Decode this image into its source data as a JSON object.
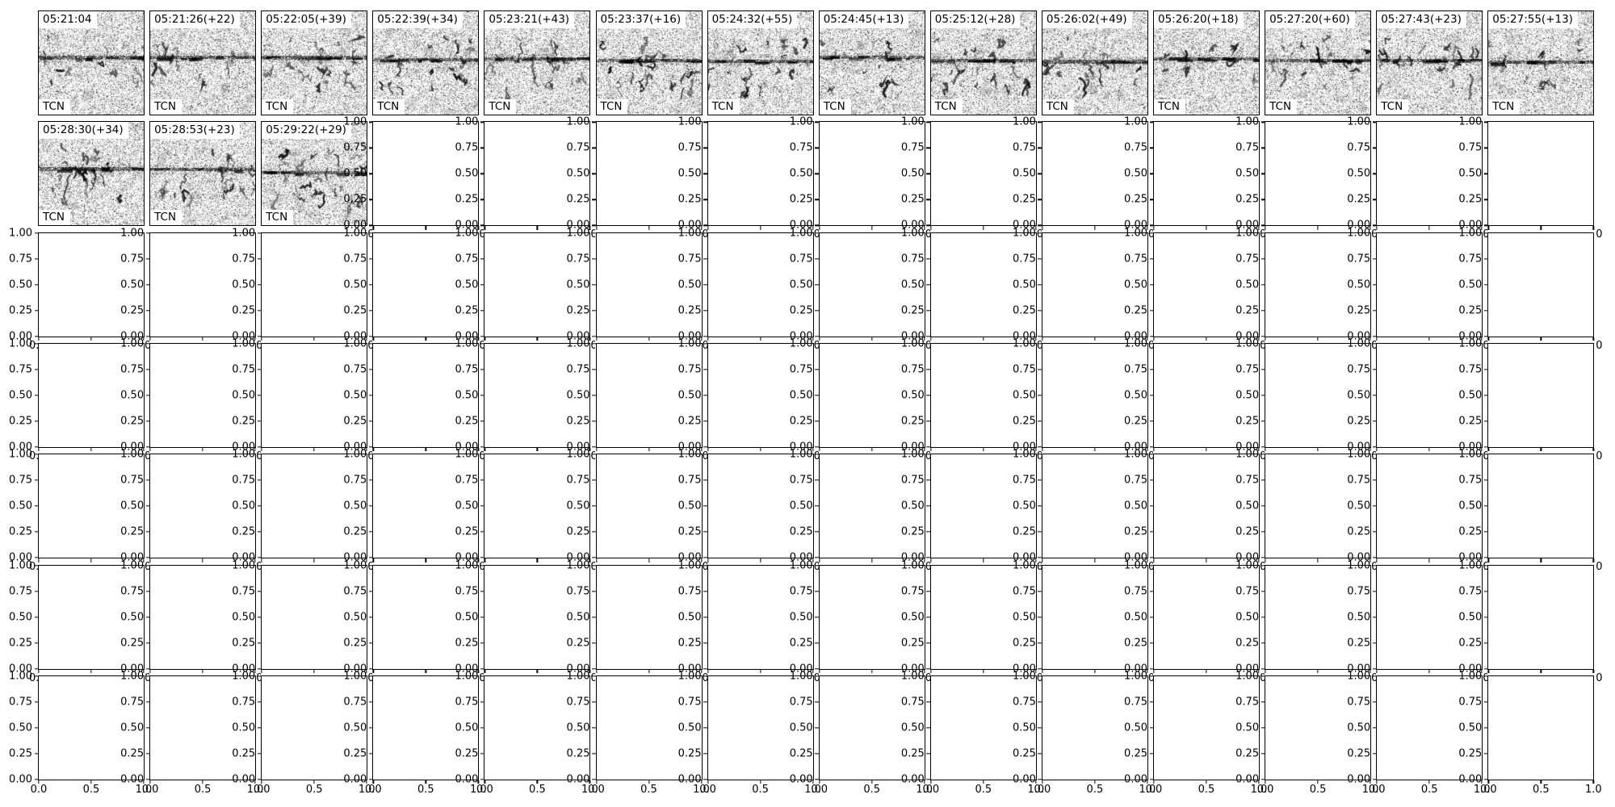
{
  "figure": {
    "background": "#ffffff",
    "ink": "#000000"
  },
  "axes": {
    "y_tick_labels": [
      "1.00",
      "0.75",
      "0.50",
      "0.25",
      "0.00"
    ],
    "x_tick_labels": [
      "0.0",
      "0.5",
      "1.0"
    ],
    "frag_gap": "0",
    "frag_right": "0"
  },
  "chart_data": {
    "type": "heatmap",
    "title": "",
    "panel_model_label": "TCN",
    "panels": [
      {
        "timestamp": "05:21:04",
        "model": "TCN"
      },
      {
        "timestamp": "05:21:26(+22)",
        "model": "TCN"
      },
      {
        "timestamp": "05:22:05(+39)",
        "model": "TCN"
      },
      {
        "timestamp": "05:22:39(+34)",
        "model": "TCN"
      },
      {
        "timestamp": "05:23:21(+43)",
        "model": "TCN"
      },
      {
        "timestamp": "05:23:37(+16)",
        "model": "TCN"
      },
      {
        "timestamp": "05:24:32(+55)",
        "model": "TCN"
      },
      {
        "timestamp": "05:24:45(+13)",
        "model": "TCN"
      },
      {
        "timestamp": "05:25:12(+28)",
        "model": "TCN"
      },
      {
        "timestamp": "05:26:02(+49)",
        "model": "TCN"
      },
      {
        "timestamp": "05:26:20(+18)",
        "model": "TCN"
      },
      {
        "timestamp": "05:27:20(+60)",
        "model": "TCN"
      },
      {
        "timestamp": "05:27:43(+23)",
        "model": "TCN"
      },
      {
        "timestamp": "05:27:55(+13)",
        "model": "TCN"
      },
      {
        "timestamp": "05:28:30(+34)",
        "model": "TCN"
      },
      {
        "timestamp": "05:28:53(+23)",
        "model": "TCN"
      },
      {
        "timestamp": "05:29:22(+29)",
        "model": "TCN"
      }
    ],
    "empty_axes": {
      "count": 81,
      "xlim": [
        0,
        1
      ],
      "ylim": [
        0,
        1
      ],
      "x_ticks": [
        0.0,
        0.5,
        1.0
      ],
      "y_ticks": [
        0.0,
        0.25,
        0.5,
        0.75,
        1.0
      ],
      "grid_lines": false
    },
    "layout_hint": {
      "rows": 7,
      "cols": 14,
      "image_panels_row1": 14,
      "image_panels_row2": 3
    }
  }
}
